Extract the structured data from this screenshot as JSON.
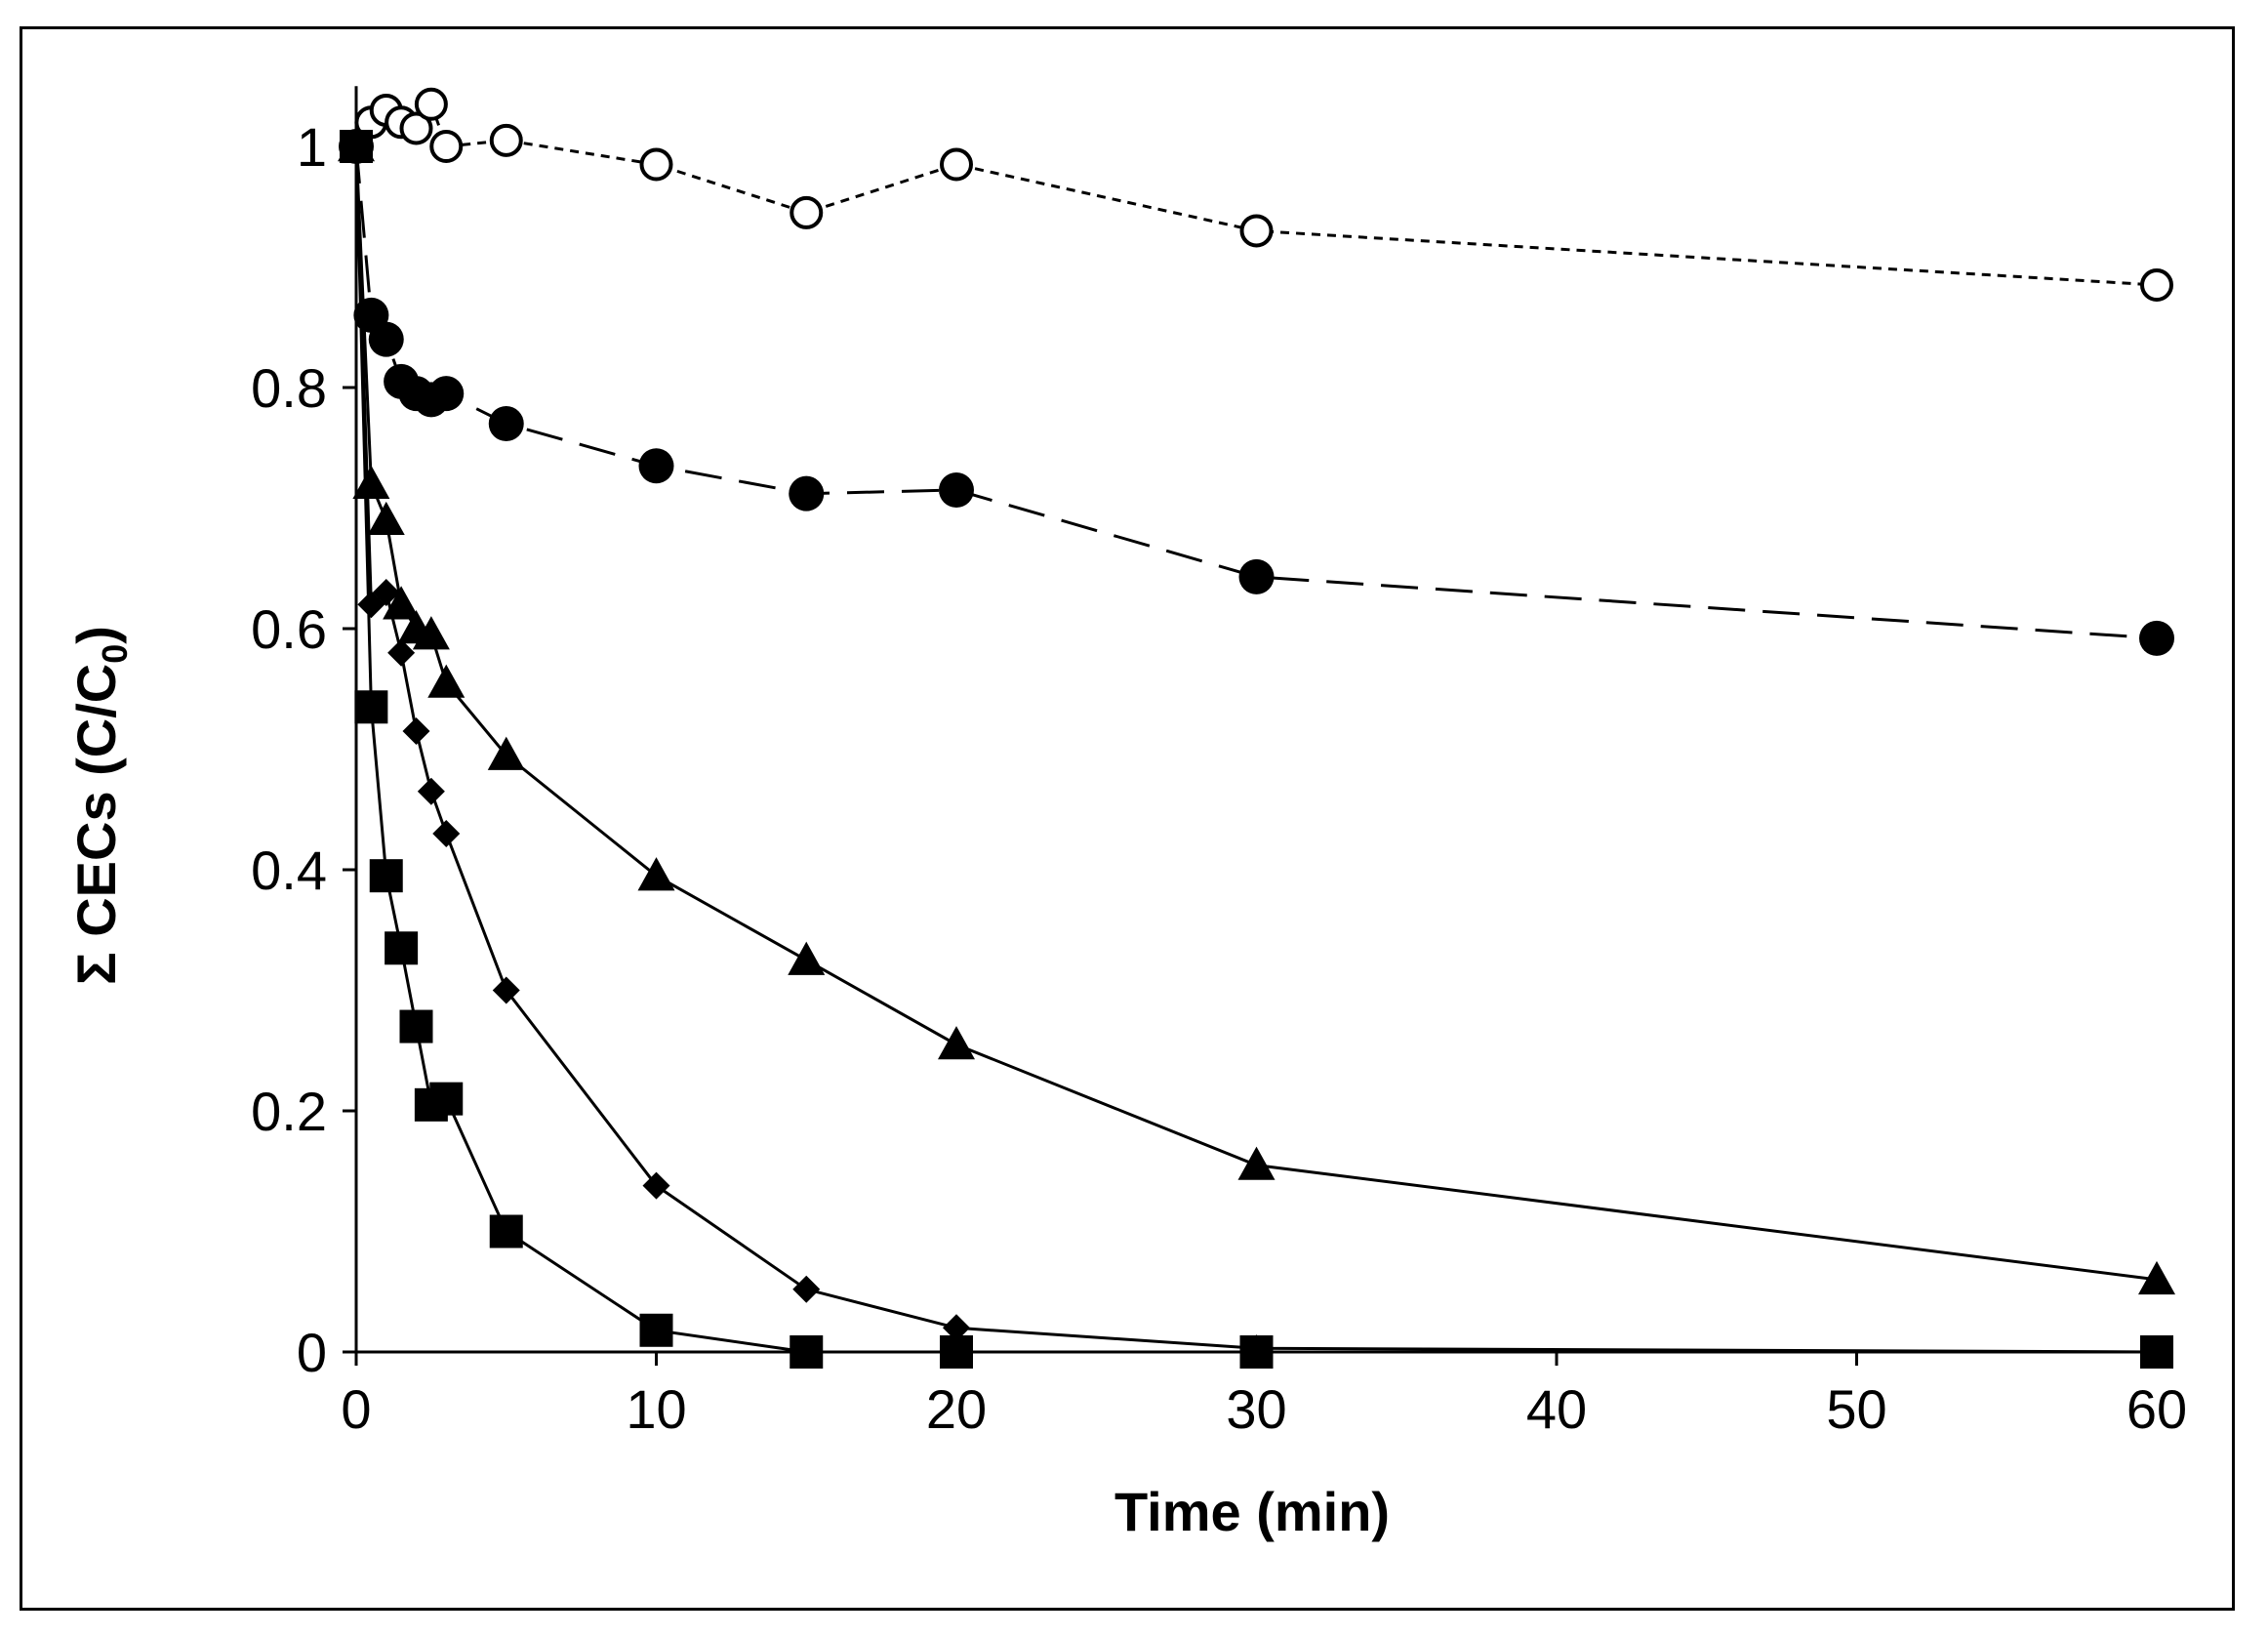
{
  "chart_data": {
    "type": "line",
    "title": "",
    "xlabel": "Time (min)",
    "ylabel_prefix": "Σ CECs (C/C",
    "ylabel_subscript": "0",
    "ylabel_suffix": ")",
    "xlim": [
      0,
      60
    ],
    "ylim": [
      0,
      1.05
    ],
    "xticks": [
      0,
      10,
      20,
      30,
      40,
      50,
      60
    ],
    "yticks": [
      0,
      0.2,
      0.4,
      0.6,
      0.8,
      1
    ],
    "xtick_labels": [
      "0",
      "10",
      "20",
      "30",
      "40",
      "50",
      "60"
    ],
    "ytick_labels": [
      "0",
      "0.2",
      "0.4",
      "0.6",
      "0.8",
      "1"
    ],
    "grid": false,
    "legend": "none",
    "x": [
      0,
      0.5,
      1,
      1.5,
      2,
      2.5,
      3,
      5,
      10,
      15,
      20,
      30,
      60
    ],
    "series": [
      {
        "name": "open-circle",
        "marker": "circle-open",
        "line": "dotted",
        "values": [
          1.0,
          1.02,
          1.03,
          1.02,
          1.015,
          1.035,
          1.0,
          1.005,
          0.985,
          0.945,
          0.985,
          0.93,
          0.885
        ]
      },
      {
        "name": "filled-circle",
        "marker": "circle-filled",
        "line": "dashed",
        "values": [
          1.0,
          0.86,
          0.84,
          0.805,
          0.795,
          0.79,
          0.795,
          0.77,
          0.735,
          0.712,
          0.715,
          0.643,
          0.592
        ]
      },
      {
        "name": "triangle",
        "marker": "triangle",
        "line": "solid",
        "values": [
          1.0,
          0.72,
          0.69,
          0.62,
          0.6,
          0.595,
          0.555,
          0.495,
          0.395,
          0.325,
          0.255,
          0.155,
          0.06
        ]
      },
      {
        "name": "diamond",
        "marker": "diamond",
        "line": "solid",
        "values": [
          1.0,
          0.62,
          0.63,
          0.58,
          0.515,
          0.465,
          0.43,
          0.3,
          0.138,
          0.052,
          0.02,
          0.003,
          0.0
        ]
      },
      {
        "name": "square",
        "marker": "square",
        "line": "solid",
        "values": [
          1.0,
          0.535,
          0.395,
          0.335,
          0.27,
          0.205,
          0.21,
          0.1,
          0.018,
          0.0,
          0.0,
          0.0,
          0.0
        ]
      }
    ]
  }
}
